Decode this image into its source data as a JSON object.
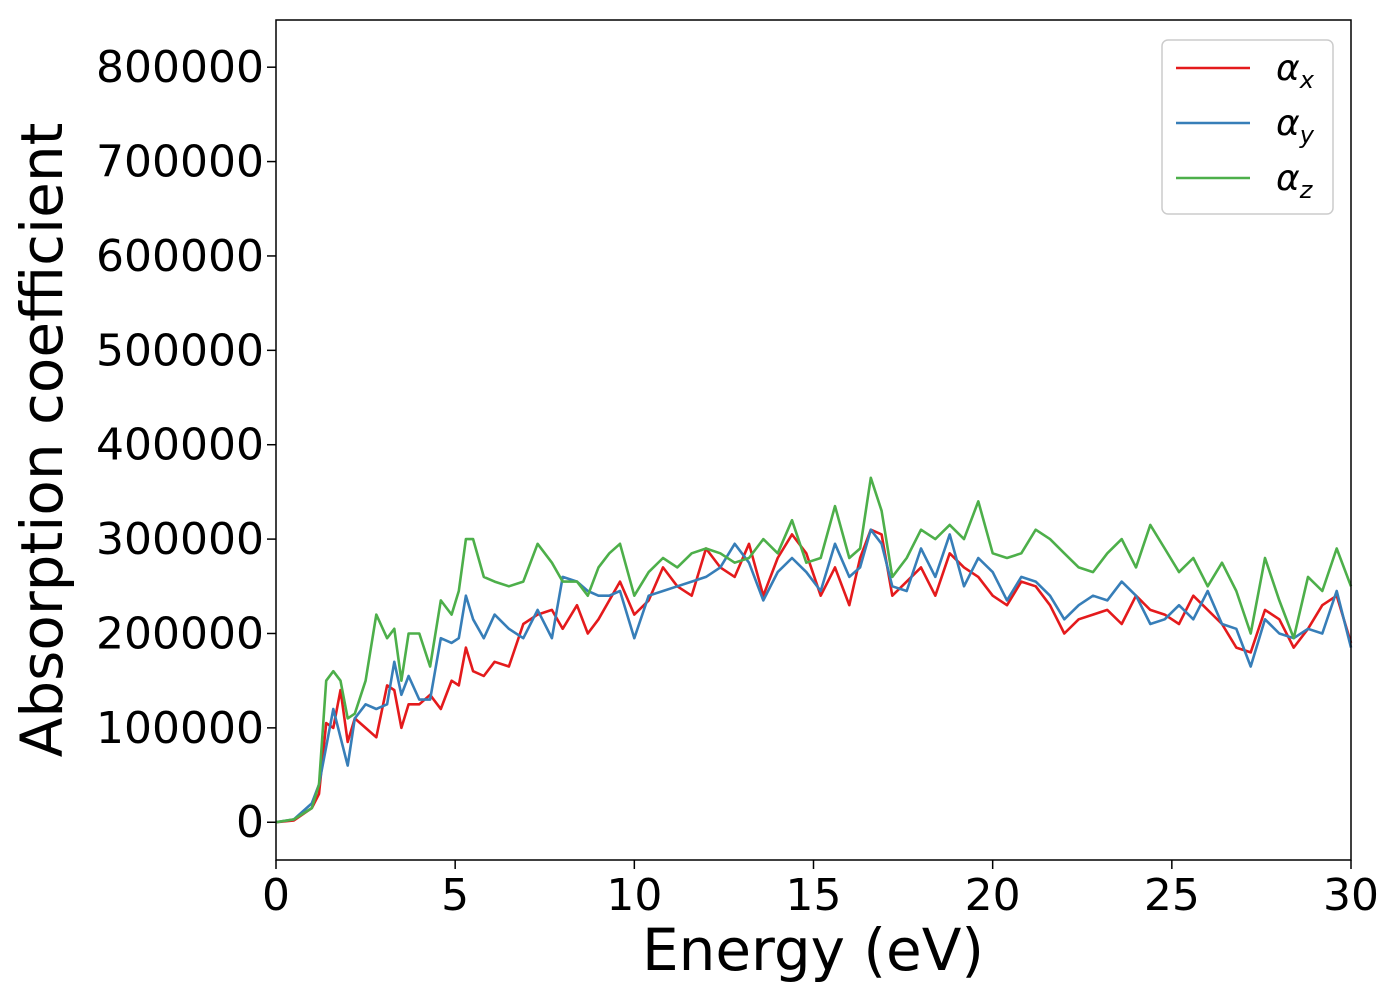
{
  "chart_data": {
    "type": "line",
    "xlabel": "Energy (eV)",
    "ylabel": "Absorption coefficient",
    "xlim": [
      0,
      30
    ],
    "ylim": [
      -40000,
      850000
    ],
    "xticks": [
      0,
      5,
      10,
      15,
      20,
      25,
      30
    ],
    "xtick_labels": [
      "0",
      "5",
      "10",
      "15",
      "20",
      "25",
      "30"
    ],
    "yticks": [
      0,
      100000,
      200000,
      300000,
      400000,
      500000,
      600000,
      700000,
      800000
    ],
    "ytick_labels": [
      "0",
      "100000",
      "200000",
      "300000",
      "400000",
      "500000",
      "600000",
      "700000",
      "800000"
    ],
    "grid": false,
    "legend_position": "top-right",
    "x": [
      0,
      0.5,
      1,
      1.2,
      1.4,
      1.6,
      1.8,
      2,
      2.2,
      2.5,
      2.8,
      3.1,
      3.3,
      3.5,
      3.7,
      4,
      4.3,
      4.6,
      4.9,
      5.1,
      5.3,
      5.5,
      5.8,
      6.1,
      6.5,
      6.9,
      7.3,
      7.7,
      8,
      8.4,
      8.7,
      9,
      9.3,
      9.6,
      10,
      10.4,
      10.8,
      11.2,
      11.6,
      12,
      12.4,
      12.8,
      13.2,
      13.6,
      14,
      14.4,
      14.8,
      15.2,
      15.6,
      16,
      16.3,
      16.6,
      16.9,
      17.2,
      17.6,
      18,
      18.4,
      18.8,
      19.2,
      19.6,
      20,
      20.4,
      20.8,
      21.2,
      21.6,
      22,
      22.4,
      22.8,
      23.2,
      23.6,
      24,
      24.4,
      24.8,
      25.2,
      25.6,
      26,
      26.4,
      26.8,
      27.2,
      27.6,
      28,
      28.4,
      28.8,
      29.2,
      29.6,
      30
    ],
    "series": [
      {
        "name": "x",
        "color": "#e41a1c",
        "values": [
          0,
          2000,
          15000,
          30000,
          105000,
          100000,
          140000,
          85000,
          110000,
          100000,
          90000,
          145000,
          140000,
          100000,
          125000,
          125000,
          135000,
          120000,
          150000,
          145000,
          185000,
          160000,
          155000,
          170000,
          165000,
          210000,
          220000,
          225000,
          205000,
          230000,
          200000,
          215000,
          235000,
          255000,
          220000,
          235000,
          270000,
          250000,
          240000,
          290000,
          270000,
          260000,
          295000,
          240000,
          280000,
          305000,
          285000,
          240000,
          270000,
          230000,
          280000,
          310000,
          305000,
          240000,
          255000,
          270000,
          240000,
          285000,
          270000,
          260000,
          240000,
          230000,
          255000,
          250000,
          230000,
          200000,
          215000,
          220000,
          225000,
          210000,
          240000,
          225000,
          220000,
          210000,
          240000,
          225000,
          210000,
          185000,
          180000,
          225000,
          215000,
          185000,
          205000,
          230000,
          240000,
          190000
        ]
      },
      {
        "name": "y",
        "color": "#377eb8",
        "values": [
          0,
          3000,
          20000,
          40000,
          80000,
          120000,
          90000,
          60000,
          110000,
          125000,
          120000,
          125000,
          170000,
          135000,
          155000,
          130000,
          130000,
          195000,
          190000,
          195000,
          240000,
          215000,
          195000,
          220000,
          205000,
          195000,
          225000,
          195000,
          260000,
          255000,
          245000,
          240000,
          240000,
          245000,
          195000,
          240000,
          245000,
          250000,
          255000,
          260000,
          270000,
          295000,
          275000,
          235000,
          265000,
          280000,
          265000,
          245000,
          295000,
          260000,
          270000,
          310000,
          295000,
          250000,
          245000,
          290000,
          260000,
          305000,
          250000,
          280000,
          265000,
          235000,
          260000,
          255000,
          240000,
          215000,
          230000,
          240000,
          235000,
          255000,
          240000,
          210000,
          215000,
          230000,
          215000,
          245000,
          210000,
          205000,
          165000,
          215000,
          200000,
          195000,
          205000,
          200000,
          245000,
          185000
        ]
      },
      {
        "name": "z",
        "color": "#4daf4a",
        "values": [
          0,
          3000,
          15000,
          40000,
          150000,
          160000,
          150000,
          110000,
          115000,
          150000,
          220000,
          195000,
          205000,
          150000,
          200000,
          200000,
          165000,
          235000,
          220000,
          245000,
          300000,
          300000,
          260000,
          255000,
          250000,
          255000,
          295000,
          275000,
          255000,
          255000,
          240000,
          270000,
          285000,
          295000,
          240000,
          265000,
          280000,
          270000,
          285000,
          290000,
          285000,
          275000,
          280000,
          300000,
          285000,
          320000,
          275000,
          280000,
          335000,
          280000,
          290000,
          365000,
          330000,
          260000,
          280000,
          310000,
          300000,
          315000,
          300000,
          340000,
          285000,
          280000,
          285000,
          310000,
          300000,
          285000,
          270000,
          265000,
          285000,
          300000,
          270000,
          315000,
          290000,
          265000,
          280000,
          250000,
          275000,
          245000,
          200000,
          280000,
          235000,
          195000,
          260000,
          245000,
          290000,
          250000
        ]
      }
    ]
  },
  "legend": [
    {
      "symbol": "α",
      "sub": "x",
      "color": "#e41a1c"
    },
    {
      "symbol": "α",
      "sub": "y",
      "color": "#377eb8"
    },
    {
      "symbol": "α",
      "sub": "z",
      "color": "#4daf4a"
    }
  ]
}
